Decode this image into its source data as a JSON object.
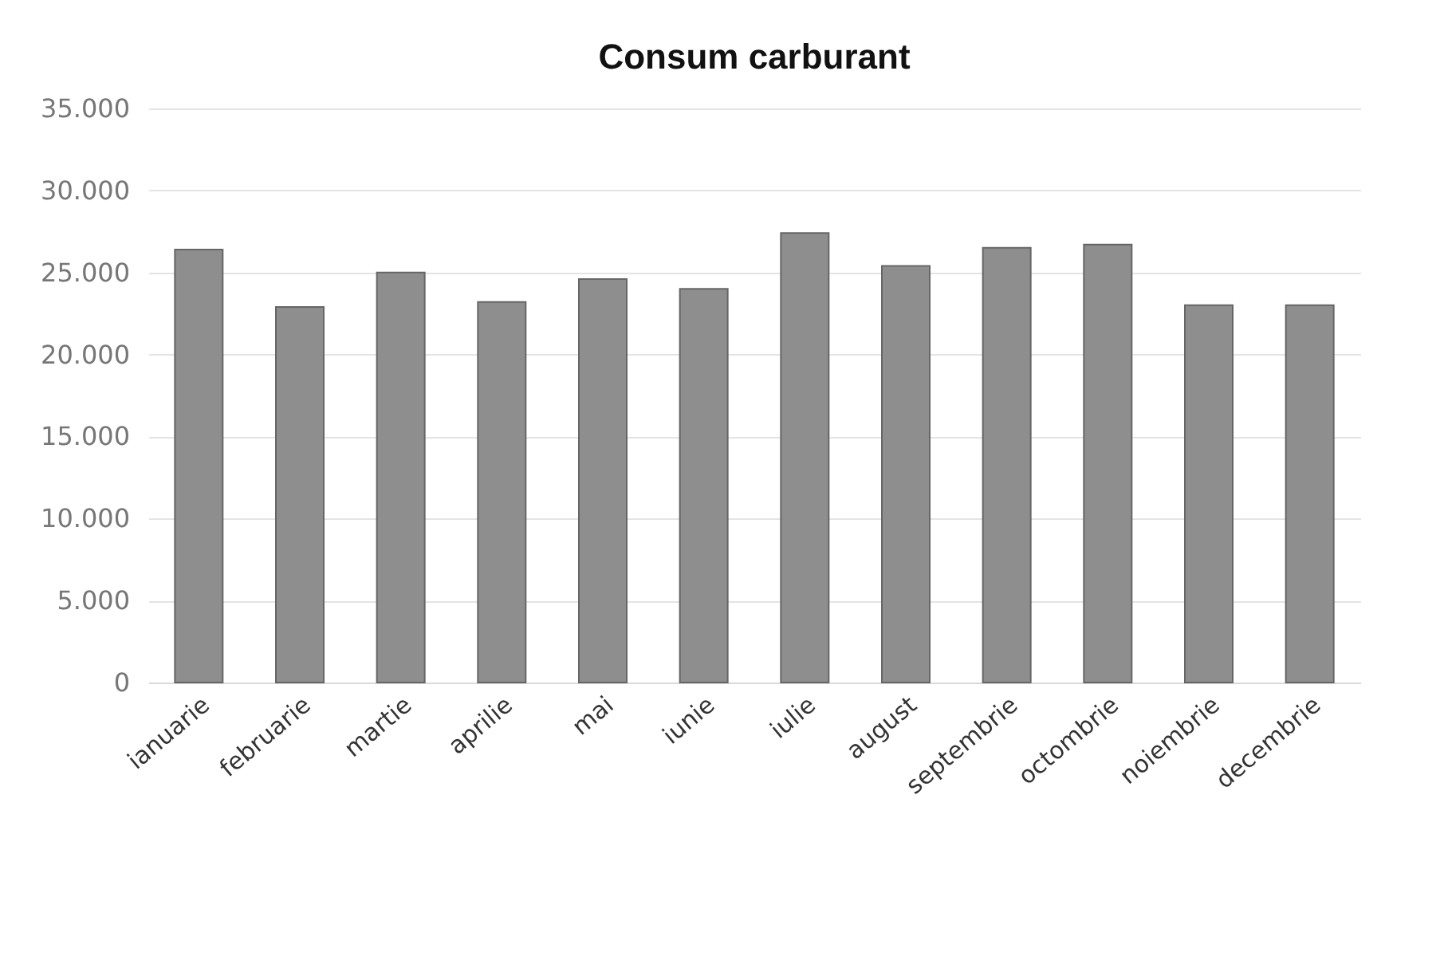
{
  "chart_data": {
    "type": "bar",
    "title": "Consum carburant",
    "categories": [
      "ianuarie",
      "februarie",
      "martie",
      "aprilie",
      "mai",
      "iunie",
      "iulie",
      "august",
      "septembrie",
      "octombrie",
      "noiembrie",
      "decembrie"
    ],
    "values": [
      26400,
      22900,
      25000,
      23200,
      24600,
      24000,
      27400,
      25400,
      26500,
      26700,
      23000,
      23000
    ],
    "color": "#8e8e8e",
    "ylim": [
      0,
      35000
    ],
    "yticks": [
      {
        "value": 0,
        "label": "0"
      },
      {
        "value": 5000,
        "label": "5.000"
      },
      {
        "value": 10000,
        "label": "10.000"
      },
      {
        "value": 15000,
        "label": "15.000"
      },
      {
        "value": 20000,
        "label": "20.000"
      },
      {
        "value": 25000,
        "label": "25.000"
      },
      {
        "value": 30000,
        "label": "30.000"
      },
      {
        "value": 35000,
        "label": "35.000"
      }
    ],
    "grid": true
  }
}
